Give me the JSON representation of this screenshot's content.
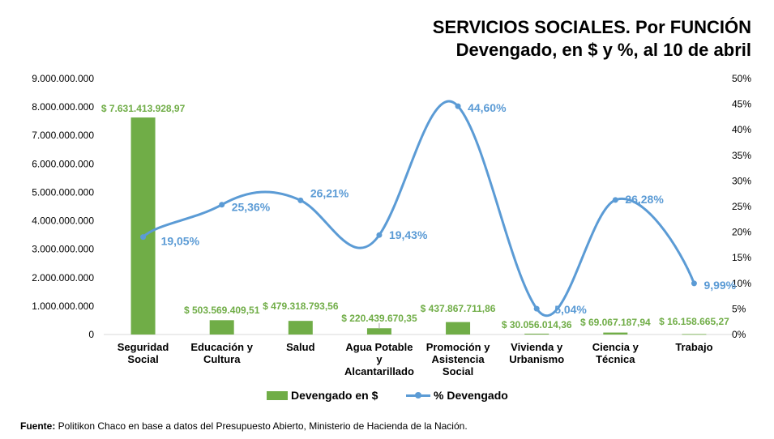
{
  "title": {
    "line1": "SERVICIOS SOCIALES. Por FUNCIÓN",
    "line2": "Devengado, en $ y %, al 10 de abril"
  },
  "source": {
    "label": "Fuente:",
    "text": " Politikon Chaco en base a datos del Presupuesto Abierto, Ministerio de Hacienda de la Nación."
  },
  "colors": {
    "bar": "#70ad47",
    "line": "#5b9bd5",
    "bar_label": "#70ad47",
    "line_label": "#5b9bd5"
  },
  "chart_data": {
    "type": "bar",
    "categories": [
      [
        "Seguridad",
        "Social"
      ],
      [
        "Educación y",
        "Cultura"
      ],
      [
        "Salud"
      ],
      [
        "Agua Potable",
        "y",
        "Alcantarillado"
      ],
      [
        "Promoción y",
        "Asistencia",
        "Social"
      ],
      [
        "Vivienda y",
        "Urbanismo"
      ],
      [
        "Ciencia y",
        "Técnica"
      ],
      [
        "Trabajo"
      ]
    ],
    "series": [
      {
        "name": "Devengado en $",
        "type": "bar",
        "axis": "left",
        "values": [
          7631413928.97,
          503569409.51,
          479318793.56,
          220439670.35,
          437867711.86,
          30056014.36,
          69067187.94,
          16158665.27
        ],
        "labels": [
          "$ 7.631.413.928,97",
          "$ 503.569.409,51",
          "$ 479.318.793,56",
          "$ 220.439.670,35",
          "$ 437.867.711,86",
          "$ 30.056.014,36",
          "$ 69.067.187,94",
          "$ 16.158.665,27"
        ]
      },
      {
        "name": "% Devengado",
        "type": "line",
        "axis": "right",
        "values": [
          19.05,
          25.36,
          26.21,
          19.43,
          44.6,
          5.04,
          26.28,
          9.99
        ],
        "labels": [
          "19,05%",
          "25,36%",
          "26,21%",
          "19,43%",
          "44,60%",
          "5,04%",
          "26,28%",
          "9,99%"
        ]
      }
    ],
    "y_left": {
      "min": 0,
      "max": 9000000000,
      "ticks": [
        "0",
        "1.000.000.000",
        "2.000.000.000",
        "3.000.000.000",
        "4.000.000.000",
        "5.000.000.000",
        "6.000.000.000",
        "7.000.000.000",
        "8.000.000.000",
        "9.000.000.000"
      ]
    },
    "y_right": {
      "min": 0,
      "max": 50,
      "ticks": [
        "0%",
        "5%",
        "10%",
        "15%",
        "20%",
        "25%",
        "30%",
        "35%",
        "40%",
        "45%",
        "50%"
      ]
    },
    "grid": false,
    "legend_position": "bottom"
  }
}
